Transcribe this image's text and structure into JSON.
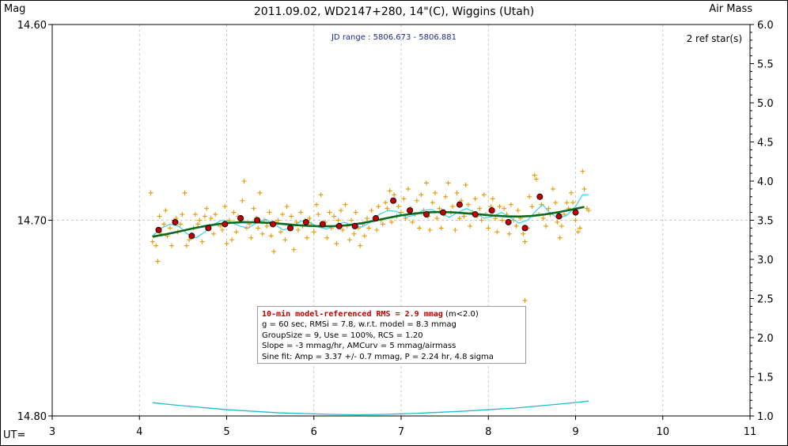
{
  "chart_data": {
    "type": "scatter",
    "title": "2011.09.02, WD2147+280, 14\"(C), Wiggins (Utah)",
    "ylabel_left": "Mag",
    "ylabel_right": "Air Mass",
    "xlabel": "UT=",
    "jd_range": "JD range : 5806.673 - 5806.881",
    "ref_stars": "2 ref star(s)",
    "x_ticks": [
      "3",
      "4",
      "5",
      "6",
      "7",
      "8",
      "9",
      "10",
      "11"
    ],
    "y_ticks_left": [
      "14.60",
      "14.70",
      "14.80"
    ],
    "y_ticks_right": [
      "6.0",
      "5.5",
      "5.0",
      "4.5",
      "4.0",
      "3.5",
      "3.0",
      "2.5",
      "2.0",
      "1.5",
      "1.0"
    ],
    "xlim": [
      3,
      11
    ],
    "ylim_mag": [
      14.8,
      14.6
    ],
    "ylim_airmass": [
      1.0,
      6.0
    ],
    "grid": true,
    "colors": {
      "raw_points": "#e69a00",
      "binned_points": "#c00000",
      "model_curve": "#0b6b1e",
      "sine_curve": "#33d6e8",
      "airmass_curve": "#1fbcd0",
      "grid": "#c8c8c8"
    },
    "raw_points": [
      [
        4.13,
        14.686
      ],
      [
        4.15,
        14.711
      ],
      [
        4.17,
        14.708
      ],
      [
        4.19,
        14.713
      ],
      [
        4.21,
        14.721
      ],
      [
        4.23,
        14.698
      ],
      [
        4.25,
        14.707
      ],
      [
        4.28,
        14.702
      ],
      [
        4.3,
        14.695
      ],
      [
        4.32,
        14.708
      ],
      [
        4.35,
        14.704
      ],
      [
        4.37,
        14.713
      ],
      [
        4.4,
        14.7
      ],
      [
        4.42,
        14.699
      ],
      [
        4.44,
        14.706
      ],
      [
        4.47,
        14.702
      ],
      [
        4.49,
        14.697
      ],
      [
        4.52,
        14.686
      ],
      [
        4.54,
        14.713
      ],
      [
        4.57,
        14.71
      ],
      [
        4.59,
        14.709
      ],
      [
        4.62,
        14.704
      ],
      [
        4.64,
        14.697
      ],
      [
        4.67,
        14.702
      ],
      [
        4.69,
        14.7
      ],
      [
        4.72,
        14.711
      ],
      [
        4.75,
        14.698
      ],
      [
        4.77,
        14.694
      ],
      [
        4.8,
        14.703
      ],
      [
        4.82,
        14.699
      ],
      [
        4.85,
        14.707
      ],
      [
        4.87,
        14.697
      ],
      [
        4.9,
        14.702
      ],
      [
        4.93,
        14.703
      ],
      [
        4.95,
        14.705
      ],
      [
        4.98,
        14.693
      ],
      [
        5.0,
        14.712
      ],
      [
        5.03,
        14.7
      ],
      [
        5.06,
        14.71
      ],
      [
        5.08,
        14.696
      ],
      [
        5.11,
        14.706
      ],
      [
        5.13,
        14.698
      ],
      [
        5.16,
        14.7
      ],
      [
        5.18,
        14.69
      ],
      [
        5.2,
        14.68
      ],
      [
        5.23,
        14.704
      ],
      [
        5.26,
        14.702
      ],
      [
        5.28,
        14.709
      ],
      [
        5.31,
        14.694
      ],
      [
        5.34,
        14.699
      ],
      [
        5.36,
        14.704
      ],
      [
        5.38,
        14.686
      ],
      [
        5.41,
        14.707
      ],
      [
        5.43,
        14.7
      ],
      [
        5.46,
        14.703
      ],
      [
        5.49,
        14.696
      ],
      [
        5.51,
        14.708
      ],
      [
        5.54,
        14.716
      ],
      [
        5.56,
        14.701
      ],
      [
        5.59,
        14.7
      ],
      [
        5.62,
        14.706
      ],
      [
        5.64,
        14.697
      ],
      [
        5.67,
        14.71
      ],
      [
        5.69,
        14.693
      ],
      [
        5.72,
        14.703
      ],
      [
        5.74,
        14.698
      ],
      [
        5.77,
        14.715
      ],
      [
        5.8,
        14.701
      ],
      [
        5.82,
        14.705
      ],
      [
        5.85,
        14.696
      ],
      [
        5.87,
        14.703
      ],
      [
        5.9,
        14.7
      ],
      [
        5.92,
        14.709
      ],
      [
        5.95,
        14.699
      ],
      [
        5.97,
        14.702
      ],
      [
        6.0,
        14.706
      ],
      [
        6.03,
        14.692
      ],
      [
        6.05,
        14.697
      ],
      [
        6.08,
        14.687
      ],
      [
        6.1,
        14.703
      ],
      [
        6.13,
        14.701
      ],
      [
        6.15,
        14.709
      ],
      [
        6.18,
        14.696
      ],
      [
        6.2,
        14.704
      ],
      [
        6.23,
        14.698
      ],
      [
        6.26,
        14.712
      ],
      [
        6.28,
        14.7
      ],
      [
        6.31,
        14.695
      ],
      [
        6.33,
        14.705
      ],
      [
        6.36,
        14.692
      ],
      [
        6.38,
        14.703
      ],
      [
        6.41,
        14.71
      ],
      [
        6.43,
        14.7
      ],
      [
        6.46,
        14.707
      ],
      [
        6.48,
        14.696
      ],
      [
        6.51,
        14.704
      ],
      [
        6.53,
        14.713
      ],
      [
        6.56,
        14.702
      ],
      [
        6.58,
        14.708
      ],
      [
        6.61,
        14.699
      ],
      [
        6.63,
        14.704
      ],
      [
        6.66,
        14.695
      ],
      [
        6.69,
        14.699
      ],
      [
        6.72,
        14.705
      ],
      [
        6.74,
        14.693
      ],
      [
        6.77,
        14.7
      ],
      [
        6.79,
        14.702
      ],
      [
        6.82,
        14.691
      ],
      [
        6.84,
        14.694
      ],
      [
        6.87,
        14.685
      ],
      [
        6.89,
        14.701
      ],
      [
        6.92,
        14.687
      ],
      [
        6.95,
        14.698
      ],
      [
        6.97,
        14.693
      ],
      [
        7.0,
        14.696
      ],
      [
        7.03,
        14.689
      ],
      [
        7.05,
        14.699
      ],
      [
        7.08,
        14.684
      ],
      [
        7.11,
        14.694
      ],
      [
        7.13,
        14.701
      ],
      [
        7.16,
        14.697
      ],
      [
        7.18,
        14.69
      ],
      [
        7.21,
        14.704
      ],
      [
        7.23,
        14.687
      ],
      [
        7.26,
        14.695
      ],
      [
        7.29,
        14.681
      ],
      [
        7.31,
        14.698
      ],
      [
        7.33,
        14.705
      ],
      [
        7.36,
        14.691
      ],
      [
        7.39,
        14.686
      ],
      [
        7.41,
        14.699
      ],
      [
        7.44,
        14.694
      ],
      [
        7.46,
        14.704
      ],
      [
        7.49,
        14.697
      ],
      [
        7.51,
        14.688
      ],
      [
        7.54,
        14.681
      ],
      [
        7.57,
        14.696
      ],
      [
        7.59,
        14.693
      ],
      [
        7.62,
        14.705
      ],
      [
        7.64,
        14.686
      ],
      [
        7.67,
        14.699
      ],
      [
        7.69,
        14.69
      ],
      [
        7.72,
        14.698
      ],
      [
        7.74,
        14.682
      ],
      [
        7.77,
        14.692
      ],
      [
        7.79,
        14.703
      ],
      [
        7.82,
        14.696
      ],
      [
        7.85,
        14.689
      ],
      [
        7.87,
        14.698
      ],
      [
        7.9,
        14.694
      ],
      [
        7.92,
        14.7
      ],
      [
        7.95,
        14.687
      ],
      [
        7.97,
        14.697
      ],
      [
        8.0,
        14.704
      ],
      [
        8.03,
        14.693
      ],
      [
        8.05,
        14.689
      ],
      [
        8.08,
        14.699
      ],
      [
        8.1,
        14.706
      ],
      [
        8.13,
        14.693
      ],
      [
        8.16,
        14.7
      ],
      [
        8.18,
        14.694
      ],
      [
        8.21,
        14.697
      ],
      [
        8.24,
        14.707
      ],
      [
        8.26,
        14.692
      ],
      [
        8.29,
        14.7
      ],
      [
        8.32,
        14.703
      ],
      [
        8.34,
        14.695
      ],
      [
        8.37,
        14.699
      ],
      [
        8.4,
        14.707
      ],
      [
        8.42,
        14.711
      ],
      [
        8.45,
        14.704
      ],
      [
        8.47,
        14.688
      ],
      [
        8.5,
        14.693
      ],
      [
        8.53,
        14.677
      ],
      [
        8.55,
        14.679
      ],
      [
        8.58,
        14.697
      ],
      [
        8.61,
        14.692
      ],
      [
        8.63,
        14.699
      ],
      [
        8.66,
        14.703
      ],
      [
        8.69,
        14.694
      ],
      [
        8.71,
        14.697
      ],
      [
        8.74,
        14.684
      ],
      [
        8.77,
        14.691
      ],
      [
        8.79,
        14.701
      ],
      [
        8.82,
        14.709
      ],
      [
        8.84,
        14.703
      ],
      [
        8.87,
        14.697
      ],
      [
        8.9,
        14.691
      ],
      [
        8.92,
        14.694
      ],
      [
        8.95,
        14.686
      ],
      [
        8.97,
        14.691
      ],
      [
        9.0,
        14.7
      ],
      [
        9.03,
        14.706
      ],
      [
        9.05,
        14.704
      ],
      [
        9.08,
        14.675
      ],
      [
        9.1,
        14.684
      ],
      [
        9.13,
        14.694
      ],
      [
        9.15,
        14.695
      ],
      [
        8.42,
        14.741
      ]
    ],
    "binned_points": [
      [
        4.22,
        14.705
      ],
      [
        4.41,
        14.701
      ],
      [
        4.6,
        14.708
      ],
      [
        4.79,
        14.704
      ],
      [
        4.98,
        14.702
      ],
      [
        5.16,
        14.699
      ],
      [
        5.35,
        14.7
      ],
      [
        5.53,
        14.702
      ],
      [
        5.73,
        14.704
      ],
      [
        5.91,
        14.701
      ],
      [
        6.1,
        14.702
      ],
      [
        6.29,
        14.703
      ],
      [
        6.47,
        14.703
      ],
      [
        6.71,
        14.699
      ],
      [
        6.91,
        14.69
      ],
      [
        7.1,
        14.695
      ],
      [
        7.29,
        14.697
      ],
      [
        7.48,
        14.696
      ],
      [
        7.67,
        14.692
      ],
      [
        7.85,
        14.697
      ],
      [
        8.04,
        14.695
      ],
      [
        8.23,
        14.701
      ],
      [
        8.42,
        14.704
      ],
      [
        8.59,
        14.688
      ],
      [
        8.81,
        14.698
      ],
      [
        9.0,
        14.696
      ]
    ],
    "model_curve": [
      [
        4.15,
        14.7084
      ],
      [
        4.3,
        14.7072
      ],
      [
        4.45,
        14.7058
      ],
      [
        4.6,
        14.7043
      ],
      [
        4.75,
        14.703
      ],
      [
        4.9,
        14.702
      ],
      [
        5.05,
        14.7013
      ],
      [
        5.2,
        14.701
      ],
      [
        5.35,
        14.7011
      ],
      [
        5.5,
        14.7014
      ],
      [
        5.65,
        14.7019
      ],
      [
        5.8,
        14.7025
      ],
      [
        5.95,
        14.7029
      ],
      [
        6.1,
        14.7031
      ],
      [
        6.25,
        14.703
      ],
      [
        6.4,
        14.7025
      ],
      [
        6.55,
        14.7015
      ],
      [
        6.7,
        14.7002
      ],
      [
        6.85,
        14.6988
      ],
      [
        7.0,
        14.6975
      ],
      [
        7.15,
        14.6966
      ],
      [
        7.3,
        14.696
      ],
      [
        7.45,
        14.6958
      ],
      [
        7.6,
        14.696
      ],
      [
        7.75,
        14.6965
      ],
      [
        7.9,
        14.697
      ],
      [
        8.05,
        14.6976
      ],
      [
        8.2,
        14.698
      ],
      [
        8.35,
        14.6981
      ],
      [
        8.5,
        14.6978
      ],
      [
        8.65,
        14.697
      ],
      [
        8.8,
        14.6959
      ],
      [
        8.95,
        14.6946
      ],
      [
        9.1,
        14.6932
      ]
    ],
    "sine_curve": [
      [
        4.15,
        14.708
      ],
      [
        4.25,
        14.704
      ],
      [
        4.35,
        14.702
      ],
      [
        4.45,
        14.703
      ],
      [
        4.55,
        14.707
      ],
      [
        4.65,
        14.709
      ],
      [
        4.75,
        14.706
      ],
      [
        4.85,
        14.702
      ],
      [
        4.95,
        14.7
      ],
      [
        5.05,
        14.701
      ],
      [
        5.15,
        14.703
      ],
      [
        5.25,
        14.704
      ],
      [
        5.35,
        14.701
      ],
      [
        5.45,
        14.6995
      ],
      [
        5.55,
        14.702
      ],
      [
        5.65,
        14.705
      ],
      [
        5.75,
        14.7035
      ],
      [
        5.85,
        14.7005
      ],
      [
        5.95,
        14.701
      ],
      [
        6.05,
        14.7035
      ],
      [
        6.15,
        14.7045
      ],
      [
        6.25,
        14.7025
      ],
      [
        6.35,
        14.701
      ],
      [
        6.45,
        14.703
      ],
      [
        6.55,
        14.7035
      ],
      [
        6.65,
        14.701
      ],
      [
        6.75,
        14.697
      ],
      [
        6.85,
        14.695
      ],
      [
        6.95,
        14.6955
      ],
      [
        7.05,
        14.6985
      ],
      [
        7.15,
        14.6975
      ],
      [
        7.25,
        14.695
      ],
      [
        7.35,
        14.6945
      ],
      [
        7.45,
        14.6965
      ],
      [
        7.55,
        14.6985
      ],
      [
        7.65,
        14.696
      ],
      [
        7.75,
        14.694
      ],
      [
        7.85,
        14.696
      ],
      [
        7.95,
        14.699
      ],
      [
        8.05,
        14.698
      ],
      [
        8.15,
        14.696
      ],
      [
        8.25,
        14.6985
      ],
      [
        8.35,
        14.7015
      ],
      [
        8.45,
        14.7
      ],
      [
        8.55,
        14.695
      ],
      [
        8.62,
        14.692
      ],
      [
        8.7,
        14.696
      ],
      [
        8.8,
        14.699
      ],
      [
        8.9,
        14.6975
      ],
      [
        9.0,
        14.693
      ],
      [
        9.08,
        14.687
      ],
      [
        9.15,
        14.687
      ]
    ],
    "airmass_curve": [
      [
        4.15,
        1.17
      ],
      [
        4.4,
        1.14
      ],
      [
        4.7,
        1.11
      ],
      [
        5.0,
        1.08
      ],
      [
        5.3,
        1.06
      ],
      [
        5.6,
        1.04
      ],
      [
        5.9,
        1.03
      ],
      [
        6.2,
        1.02
      ],
      [
        6.5,
        1.015
      ],
      [
        6.8,
        1.02
      ],
      [
        7.1,
        1.03
      ],
      [
        7.4,
        1.045
      ],
      [
        7.7,
        1.06
      ],
      [
        8.0,
        1.08
      ],
      [
        8.3,
        1.1
      ],
      [
        8.6,
        1.13
      ],
      [
        8.9,
        1.16
      ],
      [
        9.15,
        1.19
      ]
    ],
    "info_box": {
      "rms_line": "10-min model-referenced RMS = 2.9 mmag",
      "rms_suffix": " (m<2.0)",
      "line2": "g = 60 sec, RMSi = 7.8, w.r.t. model = 8.3 mmag",
      "line3": "GroupSize = 9, Use = 100%, RCS = 1.20",
      "line4": "Slope = -3 mmag/hr, AMCurv = 5 mmag/airmass",
      "line5": "Sine fit: Amp = 3.37 +/- 0.7 mmag, P = 2.24 hr, 4.8 sigma"
    }
  }
}
